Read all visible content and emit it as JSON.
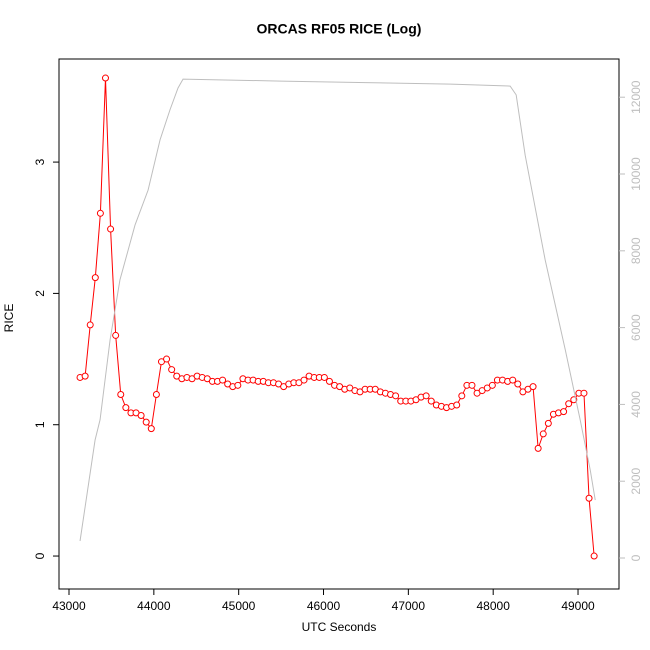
{
  "chart_data": {
    "type": "line",
    "title": "ORCAS RF05 RICE (Log)",
    "x_label": "UTC Seconds",
    "y_label": "RICE",
    "xlim": [
      42882,
      49483
    ],
    "xticks": [
      43000,
      44000,
      45000,
      46000,
      47000,
      48000,
      49000
    ],
    "ylim": [
      -0.251,
      3.785
    ],
    "yticks": [
      0,
      1,
      2,
      3
    ],
    "y2lim": [
      -807,
      12995
    ],
    "y2ticks": [
      0,
      2000,
      4000,
      6000,
      8000,
      10000,
      12000
    ],
    "y2_color": "#bebebe",
    "series": [
      {
        "color": "#ff0000",
        "markers": true,
        "x": [
          43130,
          43190,
          43250,
          43310,
          43370,
          43430,
          43490,
          43550,
          43610,
          43670,
          43730,
          43790,
          43850,
          43910,
          43970,
          44030,
          44090,
          44150,
          44210,
          44270,
          44330,
          44390,
          44450,
          44510,
          44570,
          44630,
          44690,
          44750,
          44810,
          44870,
          44930,
          44990,
          45050,
          45110,
          45170,
          45230,
          45290,
          45350,
          45410,
          45470,
          45530,
          45590,
          45650,
          45710,
          45770,
          45830,
          45890,
          45950,
          46010,
          46070,
          46130,
          46190,
          46250,
          46310,
          46370,
          46430,
          46490,
          46550,
          46610,
          46670,
          46730,
          46790,
          46850,
          46910,
          46970,
          47030,
          47090,
          47150,
          47210,
          47270,
          47330,
          47390,
          47450,
          47510,
          47570,
          47630,
          47690,
          47750,
          47810,
          47870,
          47930,
          47990,
          48050,
          48110,
          48170,
          48230,
          48290,
          48350,
          48410,
          48470,
          48530,
          48590,
          48650,
          48710,
          48770,
          48830,
          48890,
          48950,
          49010,
          49070,
          49130,
          49190
        ],
        "values": [
          1.36,
          1.37,
          1.76,
          2.12,
          2.61,
          3.64,
          2.49,
          1.68,
          1.23,
          1.13,
          1.09,
          1.09,
          1.07,
          1.02,
          0.97,
          1.23,
          1.48,
          1.5,
          1.42,
          1.37,
          1.35,
          1.36,
          1.35,
          1.37,
          1.36,
          1.35,
          1.33,
          1.33,
          1.34,
          1.31,
          1.29,
          1.3,
          1.35,
          1.34,
          1.34,
          1.33,
          1.33,
          1.32,
          1.32,
          1.31,
          1.29,
          1.31,
          1.32,
          1.32,
          1.34,
          1.37,
          1.36,
          1.36,
          1.36,
          1.33,
          1.3,
          1.29,
          1.27,
          1.28,
          1.26,
          1.25,
          1.27,
          1.27,
          1.27,
          1.25,
          1.24,
          1.23,
          1.22,
          1.18,
          1.18,
          1.18,
          1.19,
          1.21,
          1.22,
          1.18,
          1.15,
          1.14,
          1.13,
          1.14,
          1.15,
          1.22,
          1.3,
          1.3,
          1.24,
          1.26,
          1.28,
          1.3,
          1.34,
          1.34,
          1.33,
          1.34,
          1.31,
          1.25,
          1.27,
          1.29,
          0.82,
          0.93,
          1.01,
          1.08,
          1.09,
          1.1,
          1.16,
          1.19,
          1.24,
          1.24,
          0.44,
          0.0
        ]
      },
      {
        "color": "#bebebe",
        "axis": "y2",
        "x": [
          43130,
          43307,
          43366,
          43484,
          43600,
          43778,
          43932,
          44073,
          44190,
          44285,
          44344,
          45500,
          46500,
          47500,
          48200,
          48271,
          48377,
          48613,
          48850,
          49026,
          49144,
          49203
        ],
        "values": [
          443,
          3070,
          3600,
          5680,
          7240,
          8670,
          9580,
          10890,
          11670,
          12240,
          12470,
          12420,
          12380,
          12340,
          12290,
          12060,
          10490,
          7760,
          5420,
          3590,
          2290,
          1510
        ]
      }
    ]
  }
}
